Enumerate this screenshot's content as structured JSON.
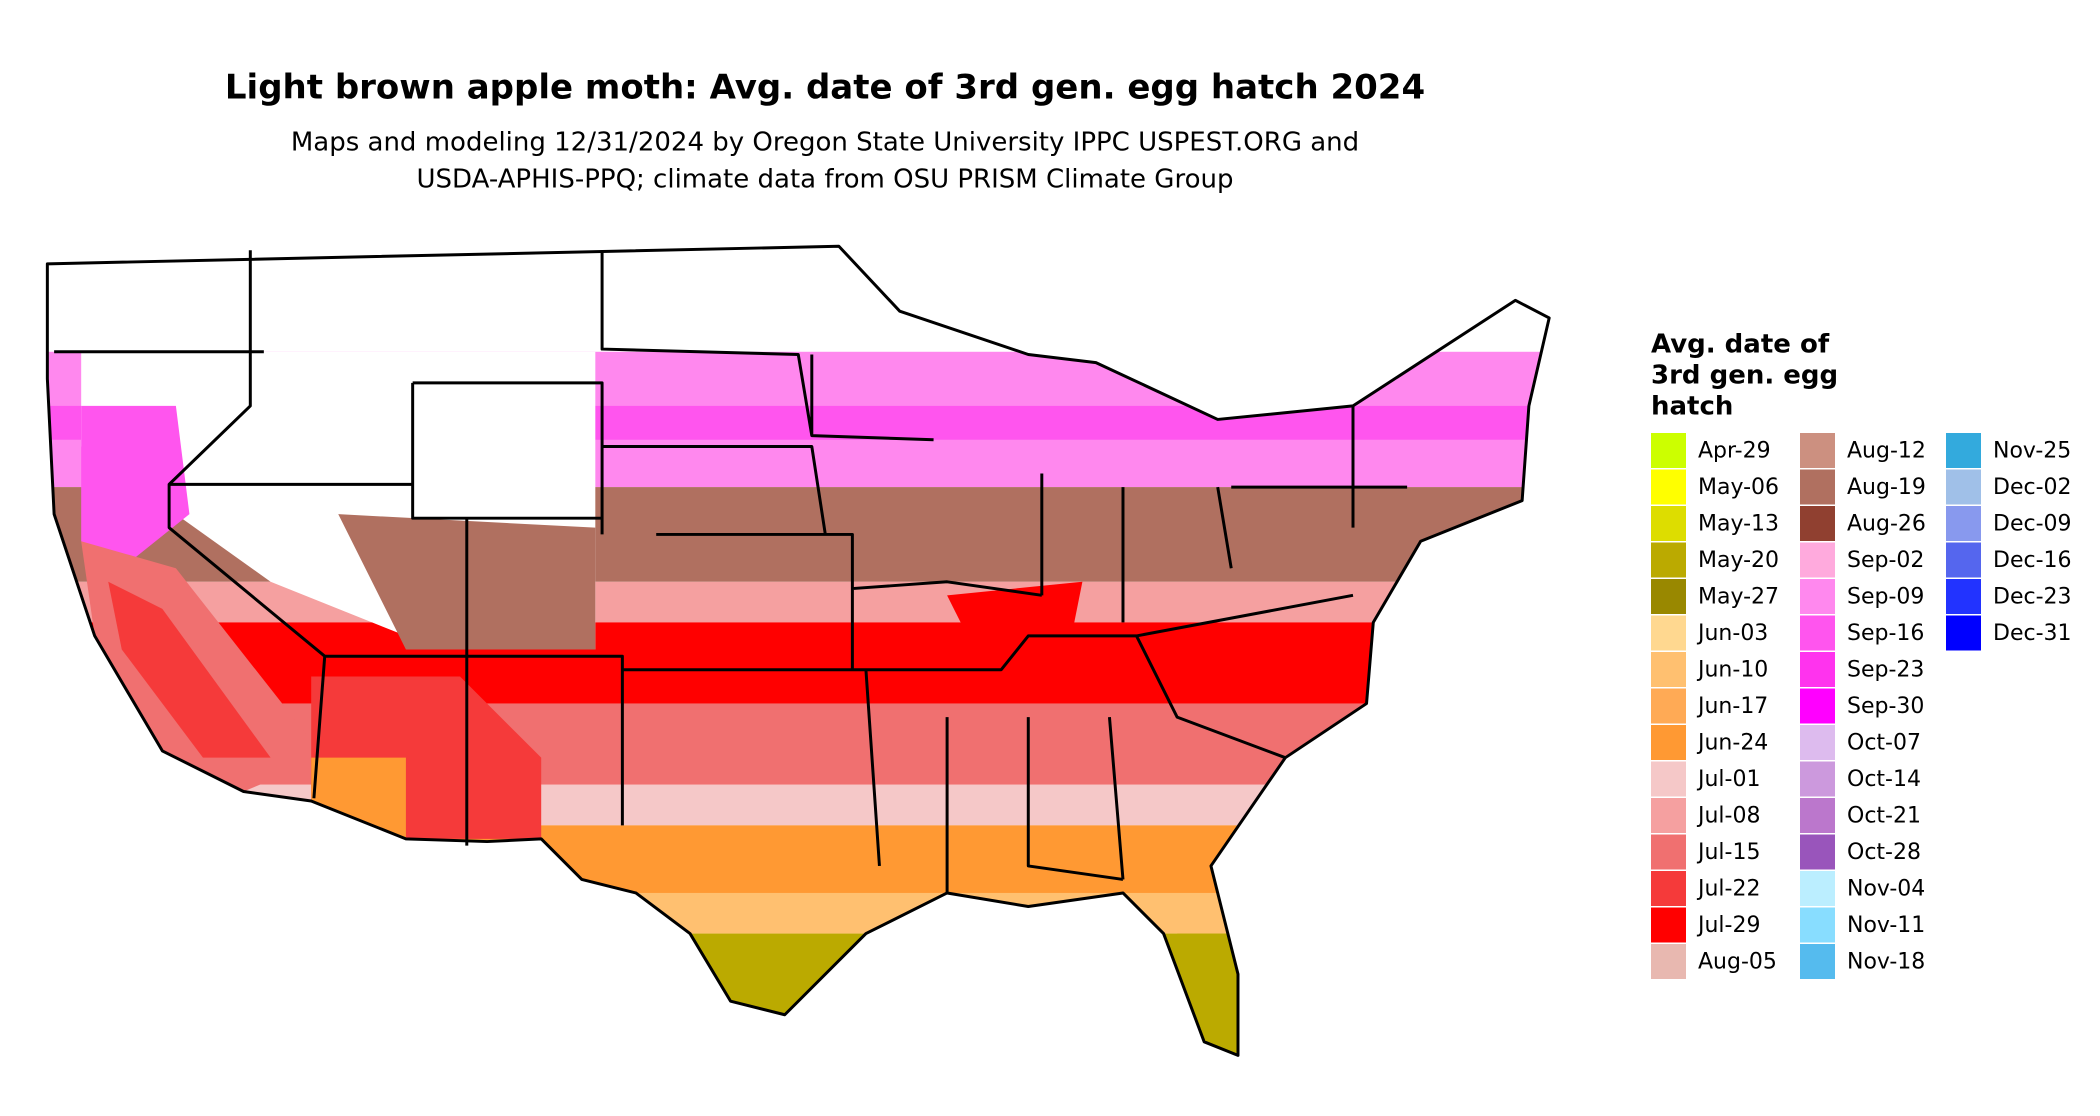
{
  "title": "Light brown apple moth: Avg. date of 3rd gen. egg hatch 2024",
  "subtitle": [
    "Maps and modeling 12/31/2024 by Oregon State University IPPC USPEST.ORG and",
    "USDA-APHIS-PPQ; climate data from OSU PRISM Climate Group"
  ],
  "legend": {
    "title": [
      "Avg. date of",
      "3rd gen. egg",
      "hatch"
    ],
    "entries": [
      {
        "label": "Apr-29",
        "color": "#ccff00"
      },
      {
        "label": "May-06",
        "color": "#ffff00"
      },
      {
        "label": "May-13",
        "color": "#dddd00"
      },
      {
        "label": "May-20",
        "color": "#bbaa00"
      },
      {
        "label": "May-27",
        "color": "#998800"
      },
      {
        "label": "Jun-03",
        "color": "#ffd890"
      },
      {
        "label": "Jun-10",
        "color": "#ffc070"
      },
      {
        "label": "Jun-17",
        "color": "#ffaa55"
      },
      {
        "label": "Jun-24",
        "color": "#ff9933"
      },
      {
        "label": "Jul-01",
        "color": "#f5c8c8"
      },
      {
        "label": "Jul-08",
        "color": "#f5a0a0"
      },
      {
        "label": "Jul-15",
        "color": "#f07070"
      },
      {
        "label": "Jul-22",
        "color": "#f53a3a"
      },
      {
        "label": "Jul-29",
        "color": "#ff0000"
      },
      {
        "label": "Aug-05",
        "color": "#e8b8b0"
      },
      {
        "label": "Aug-12",
        "color": "#cc9080"
      },
      {
        "label": "Aug-19",
        "color": "#b07060"
      },
      {
        "label": "Aug-26",
        "color": "#904030"
      },
      {
        "label": "Sep-02",
        "color": "#ffaadd"
      },
      {
        "label": "Sep-09",
        "color": "#ff88ee"
      },
      {
        "label": "Sep-16",
        "color": "#ff55ee"
      },
      {
        "label": "Sep-23",
        "color": "#ff33ee"
      },
      {
        "label": "Sep-30",
        "color": "#ff00ff"
      },
      {
        "label": "Oct-07",
        "color": "#ddbbee"
      },
      {
        "label": "Oct-14",
        "color": "#cc99dd"
      },
      {
        "label": "Oct-21",
        "color": "#bb77cc"
      },
      {
        "label": "Oct-28",
        "color": "#9955bb"
      },
      {
        "label": "Nov-04",
        "color": "#bbeeff"
      },
      {
        "label": "Nov-11",
        "color": "#88ddff"
      },
      {
        "label": "Nov-18",
        "color": "#55bbee"
      },
      {
        "label": "Nov-25",
        "color": "#33aadd"
      },
      {
        "label": "Dec-02",
        "color": "#a0c0e8"
      },
      {
        "label": "Dec-09",
        "color": "#8899ee"
      },
      {
        "label": "Dec-16",
        "color": "#5566ee"
      },
      {
        "label": "Dec-23",
        "color": "#2233ff"
      },
      {
        "label": "Dec-31",
        "color": "#0000ff"
      }
    ]
  }
}
